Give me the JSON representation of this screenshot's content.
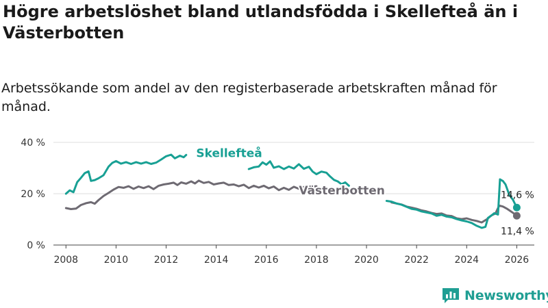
{
  "title": "Högre arbetslöshet bland utlandsfödda i Skellefteå än i Västerbotten",
  "subtitle": "Arbetssökande som andel av den registerbaserade arbetskraften månad för månad.",
  "brand": {
    "name": "Newsworthy",
    "logo_icon": "bar-chart-logo-icon",
    "color": "#1f9e93"
  },
  "chart_data": {
    "type": "line",
    "title": "Högre arbetslöshet bland utlandsfödda i Skellefteå än i Västerbotten",
    "subtitle": "Arbetssökande som andel av den registerbaserade arbetskraften månad för månad.",
    "xlabel": "",
    "ylabel": "",
    "xlim": [
      2007.5,
      2026.7
    ],
    "ylim": [
      0,
      40
    ],
    "x_ticks": [
      2008,
      2010,
      2012,
      2014,
      2016,
      2018,
      2020,
      2022,
      2024,
      2026
    ],
    "y_ticks": [
      0,
      20,
      40
    ],
    "y_tick_labels": [
      "0 %",
      "20 %",
      "40 %"
    ],
    "grid": true,
    "series": [
      {
        "name": "Skellefteå",
        "color": "#18a094",
        "end_label": "14,6 %",
        "points": [
          [
            2008.0,
            20.0
          ],
          [
            2008.15,
            21.3
          ],
          [
            2008.3,
            20.6
          ],
          [
            2008.45,
            24.5
          ],
          [
            2008.6,
            26.2
          ],
          [
            2008.75,
            28.0
          ],
          [
            2008.9,
            28.7
          ],
          [
            2009.0,
            25.0
          ],
          [
            2009.15,
            25.3
          ],
          [
            2009.3,
            26.0
          ],
          [
            2009.5,
            27.2
          ],
          [
            2009.7,
            30.5
          ],
          [
            2009.85,
            32.0
          ],
          [
            2010.0,
            32.7
          ],
          [
            2010.2,
            31.7
          ],
          [
            2010.4,
            32.3
          ],
          [
            2010.6,
            31.6
          ],
          [
            2010.8,
            32.3
          ],
          [
            2011.0,
            31.7
          ],
          [
            2011.2,
            32.3
          ],
          [
            2011.4,
            31.6
          ],
          [
            2011.6,
            32.1
          ],
          [
            2011.8,
            33.3
          ],
          [
            2012.0,
            34.6
          ],
          [
            2012.2,
            35.2
          ],
          [
            2012.35,
            33.8
          ],
          [
            2012.55,
            34.8
          ],
          [
            2012.7,
            34.2
          ],
          [
            2012.8,
            35.1
          ],
          [
            null,
            null
          ],
          [
            2015.3,
            29.6
          ],
          [
            2015.5,
            30.3
          ],
          [
            2015.7,
            30.6
          ],
          [
            2015.85,
            32.2
          ],
          [
            2016.0,
            31.3
          ],
          [
            2016.15,
            32.6
          ],
          [
            2016.3,
            30.1
          ],
          [
            2016.5,
            30.7
          ],
          [
            2016.7,
            29.6
          ],
          [
            2016.9,
            30.6
          ],
          [
            2017.1,
            29.8
          ],
          [
            2017.3,
            31.5
          ],
          [
            2017.5,
            29.7
          ],
          [
            2017.7,
            30.5
          ],
          [
            2017.85,
            28.6
          ],
          [
            2018.0,
            27.6
          ],
          [
            2018.2,
            28.6
          ],
          [
            2018.4,
            28.2
          ],
          [
            2018.55,
            26.7
          ],
          [
            2018.7,
            25.4
          ],
          [
            2018.85,
            24.8
          ],
          [
            2019.0,
            23.7
          ],
          [
            2019.15,
            24.4
          ],
          [
            2019.3,
            23.1
          ],
          [
            null,
            null
          ],
          [
            2020.8,
            17.2
          ],
          [
            2021.0,
            16.9
          ],
          [
            2021.2,
            16.2
          ],
          [
            2021.4,
            15.7
          ],
          [
            2021.6,
            14.9
          ],
          [
            2021.8,
            14.1
          ],
          [
            2022.0,
            13.8
          ],
          [
            2022.2,
            13.1
          ],
          [
            2022.4,
            12.7
          ],
          [
            2022.6,
            12.3
          ],
          [
            2022.8,
            11.4
          ],
          [
            2023.0,
            11.8
          ],
          [
            2023.2,
            11.1
          ],
          [
            2023.4,
            10.8
          ],
          [
            2023.6,
            10.1
          ],
          [
            2023.8,
            9.6
          ],
          [
            2024.0,
            9.2
          ],
          [
            2024.2,
            8.6
          ],
          [
            2024.4,
            7.5
          ],
          [
            2024.6,
            6.7
          ],
          [
            2024.75,
            7.1
          ],
          [
            2024.85,
            10.6
          ],
          [
            2025.0,
            11.6
          ],
          [
            2025.1,
            12.4
          ],
          [
            2025.25,
            11.9
          ],
          [
            2025.33,
            25.6
          ],
          [
            2025.45,
            24.9
          ],
          [
            2025.55,
            23.6
          ],
          [
            2025.7,
            19.6
          ],
          [
            2025.85,
            17.6
          ],
          [
            2026.0,
            14.6
          ]
        ]
      },
      {
        "name": "Västerbotten",
        "color": "#6e6a72",
        "end_label": "11,4 %",
        "points": [
          [
            2008.0,
            14.4
          ],
          [
            2008.2,
            14.0
          ],
          [
            2008.4,
            14.2
          ],
          [
            2008.6,
            15.6
          ],
          [
            2008.8,
            16.3
          ],
          [
            2009.0,
            16.7
          ],
          [
            2009.15,
            16.1
          ],
          [
            2009.3,
            17.5
          ],
          [
            2009.5,
            19.1
          ],
          [
            2009.7,
            20.3
          ],
          [
            2009.9,
            21.6
          ],
          [
            2010.1,
            22.6
          ],
          [
            2010.3,
            22.3
          ],
          [
            2010.5,
            22.9
          ],
          [
            2010.7,
            21.9
          ],
          [
            2010.9,
            22.8
          ],
          [
            2011.1,
            22.2
          ],
          [
            2011.3,
            22.9
          ],
          [
            2011.5,
            21.8
          ],
          [
            2011.7,
            23.1
          ],
          [
            2011.9,
            23.6
          ],
          [
            2012.1,
            23.9
          ],
          [
            2012.3,
            24.3
          ],
          [
            2012.45,
            23.4
          ],
          [
            2012.6,
            24.4
          ],
          [
            2012.8,
            23.9
          ],
          [
            2013.0,
            24.8
          ],
          [
            2013.15,
            24.0
          ],
          [
            2013.3,
            25.1
          ],
          [
            2013.5,
            24.2
          ],
          [
            2013.7,
            24.6
          ],
          [
            2013.9,
            23.6
          ],
          [
            2014.1,
            24.0
          ],
          [
            2014.3,
            24.3
          ],
          [
            2014.5,
            23.4
          ],
          [
            2014.7,
            23.6
          ],
          [
            2014.9,
            22.9
          ],
          [
            2015.1,
            23.5
          ],
          [
            2015.3,
            22.2
          ],
          [
            2015.5,
            23.1
          ],
          [
            2015.7,
            22.4
          ],
          [
            2015.9,
            23.1
          ],
          [
            2016.1,
            22.1
          ],
          [
            2016.3,
            22.8
          ],
          [
            2016.5,
            21.4
          ],
          [
            2016.7,
            22.3
          ],
          [
            2016.9,
            21.5
          ],
          [
            2017.1,
            22.7
          ],
          [
            2017.3,
            21.9
          ],
          [
            2017.5,
            22.6
          ],
          [
            2017.7,
            21.7
          ],
          [
            2017.85,
            22.8
          ],
          [
            2018.0,
            22.9
          ],
          [
            null,
            null
          ],
          [
            2021.0,
            16.6
          ],
          [
            2021.2,
            16.2
          ],
          [
            2021.4,
            15.8
          ],
          [
            2021.6,
            15.0
          ],
          [
            2021.8,
            14.6
          ],
          [
            2022.0,
            14.1
          ],
          [
            2022.2,
            13.5
          ],
          [
            2022.4,
            13.1
          ],
          [
            2022.6,
            12.5
          ],
          [
            2022.8,
            12.1
          ],
          [
            2023.0,
            12.3
          ],
          [
            2023.2,
            11.5
          ],
          [
            2023.4,
            11.3
          ],
          [
            2023.6,
            10.4
          ],
          [
            2023.8,
            10.1
          ],
          [
            2024.0,
            10.4
          ],
          [
            2024.2,
            9.8
          ],
          [
            2024.4,
            9.4
          ],
          [
            2024.6,
            8.8
          ],
          [
            2024.8,
            10.0
          ],
          [
            2025.0,
            11.6
          ],
          [
            2025.15,
            12.3
          ],
          [
            2025.3,
            15.4
          ],
          [
            2025.45,
            15.0
          ],
          [
            2025.6,
            14.2
          ],
          [
            2025.75,
            13.2
          ],
          [
            2025.9,
            12.2
          ],
          [
            2026.0,
            11.4
          ]
        ]
      }
    ],
    "annotations": [
      {
        "text": "Skellefteå",
        "series": 0,
        "x": 2013.2,
        "y": 34.3,
        "color": "#18a094"
      },
      {
        "text": "Västerbotten",
        "series": 1,
        "x": 2017.3,
        "y": 19.8,
        "color": "#6e6a72"
      }
    ]
  }
}
